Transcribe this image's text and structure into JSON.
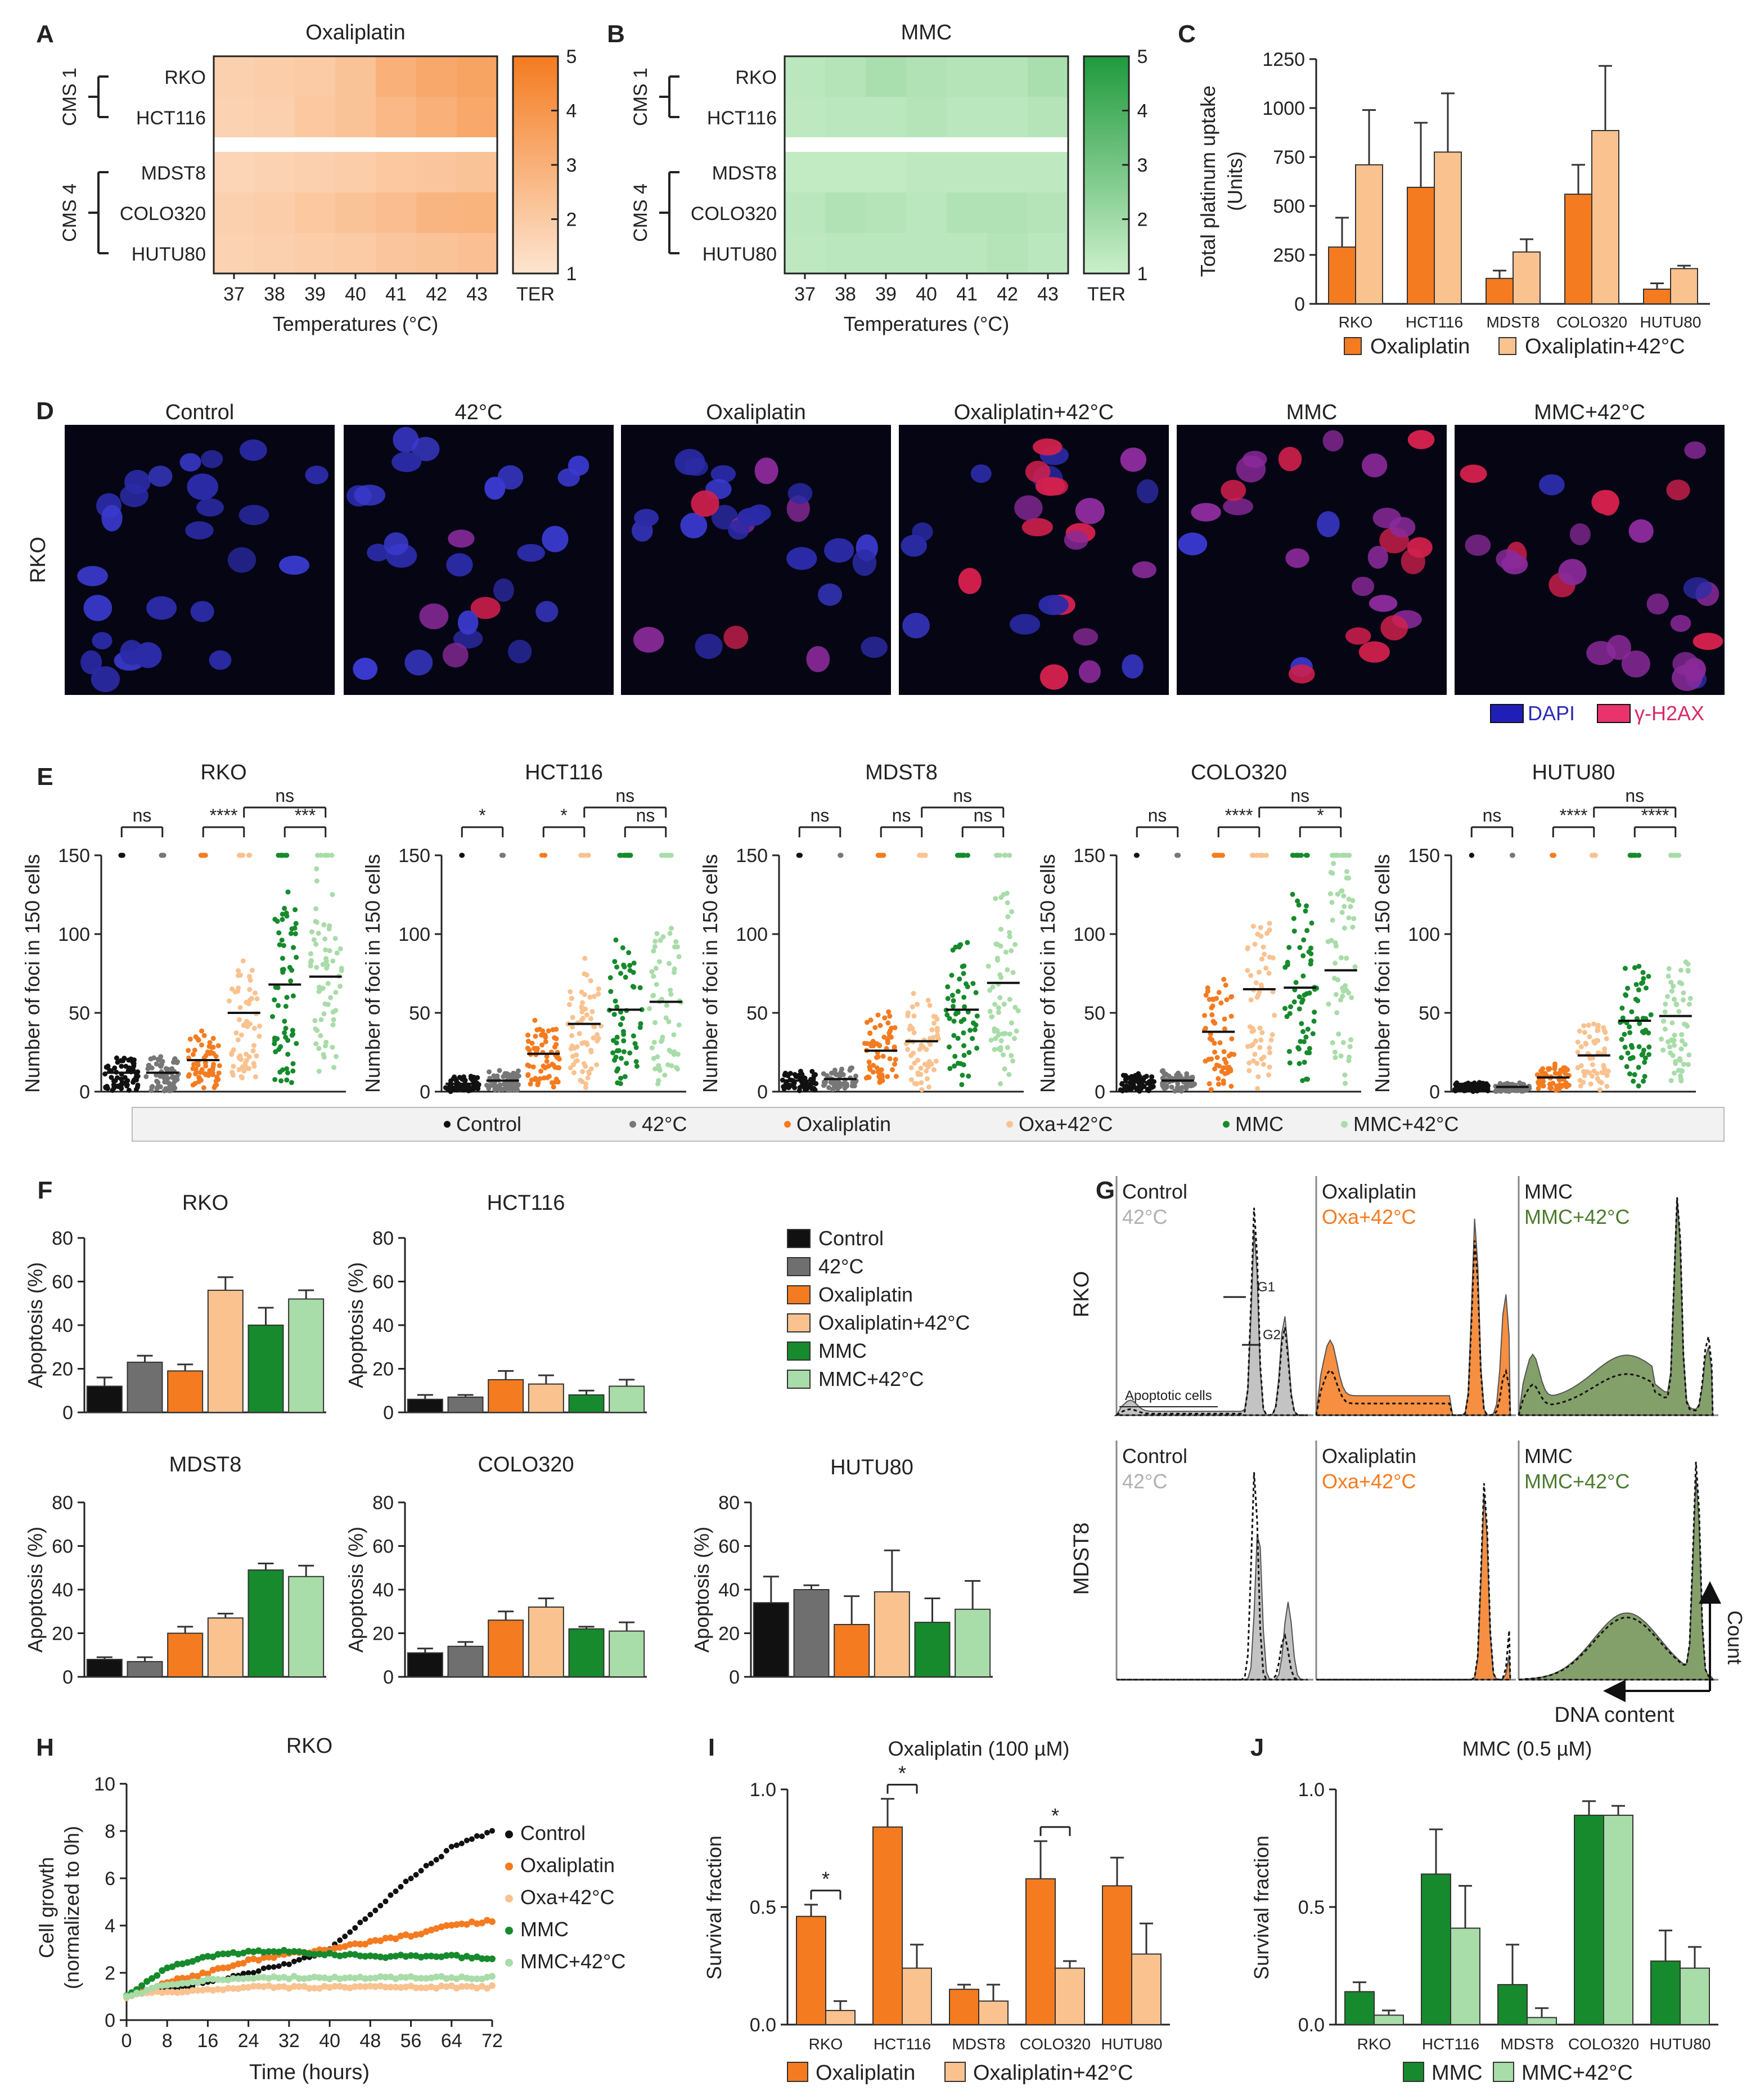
{
  "figure": {
    "panel_letters": [
      "A",
      "B",
      "C",
      "D",
      "E",
      "F",
      "G",
      "H",
      "I",
      "J"
    ],
    "colors": {
      "control": "#111111",
      "heat": "#6f6f6f",
      "oxaliplatin": "#f47b20",
      "oxa_heat": "#f9c28f",
      "mmc": "#168a2c",
      "mmc_heat": "#a8dca8",
      "dapi": "#1f1fb8",
      "h2ax": "#e8336d"
    }
  },
  "chart_data": [
    {
      "id": "A",
      "type": "heatmap",
      "title": "Oxaliplatin",
      "xlabel": "Temperatures (°C)",
      "x": [
        "37",
        "38",
        "39",
        "40",
        "41",
        "42",
        "43"
      ],
      "rows": [
        "RKO",
        "HCT116",
        "MDST8",
        "COLO320",
        "HUTU80"
      ],
      "groups": [
        {
          "label": "CMS 1",
          "rows": [
            "RKO",
            "HCT116"
          ]
        },
        {
          "label": "CMS 4",
          "rows": [
            "MDST8",
            "COLO320",
            "HUTU80"
          ]
        }
      ],
      "values": [
        [
          1.8,
          1.9,
          2.0,
          2.3,
          3.0,
          3.3,
          3.5
        ],
        [
          1.7,
          1.8,
          2.1,
          2.3,
          2.7,
          3.0,
          3.3
        ],
        [
          1.6,
          1.7,
          1.8,
          1.9,
          2.1,
          2.2,
          2.3
        ],
        [
          1.8,
          1.9,
          2.1,
          2.3,
          2.5,
          2.8,
          2.9
        ],
        [
          1.7,
          1.8,
          1.9,
          2.0,
          2.2,
          2.3,
          2.4
        ]
      ],
      "colorbar": {
        "label": "TER",
        "min": 1,
        "max": 5,
        "ticks": [
          "1",
          "2",
          "3",
          "4",
          "5"
        ]
      }
    },
    {
      "id": "B",
      "type": "heatmap",
      "title": "MMC",
      "xlabel": "Temperatures (°C)",
      "x": [
        "37",
        "38",
        "39",
        "40",
        "41",
        "42",
        "43"
      ],
      "rows": [
        "RKO",
        "HCT116",
        "MDST8",
        "COLO320",
        "HUTU80"
      ],
      "groups": [
        {
          "label": "CMS 1",
          "rows": [
            "RKO",
            "HCT116"
          ]
        },
        {
          "label": "CMS 4",
          "rows": [
            "MDST8",
            "COLO320",
            "HUTU80"
          ]
        }
      ],
      "values": [
        [
          1.4,
          1.5,
          1.8,
          1.6,
          1.5,
          1.5,
          1.8
        ],
        [
          1.3,
          1.4,
          1.4,
          1.5,
          1.4,
          1.4,
          1.5
        ],
        [
          1.2,
          1.2,
          1.2,
          1.3,
          1.3,
          1.3,
          1.3
        ],
        [
          1.4,
          1.6,
          1.5,
          1.4,
          1.6,
          1.6,
          1.5
        ],
        [
          1.3,
          1.4,
          1.4,
          1.4,
          1.4,
          1.5,
          1.4
        ]
      ],
      "colorbar": {
        "label": "TER",
        "min": 1,
        "max": 5,
        "ticks": [
          "1",
          "2",
          "3",
          "4",
          "5"
        ]
      }
    },
    {
      "id": "C",
      "type": "bar",
      "title": "",
      "ylabel": "Total platinum uptake (Units)",
      "ylabel_lines": [
        "Total platinum uptake",
        "(Units)"
      ],
      "ylim": [
        0,
        1250
      ],
      "yticks": [
        "0",
        "250",
        "500",
        "750",
        "1000",
        "1250"
      ],
      "categories": [
        "RKO",
        "HCT116",
        "MDST8",
        "COLO320",
        "HUTU80"
      ],
      "series": [
        {
          "name": "Oxaliplatin",
          "values": [
            290,
            595,
            130,
            560,
            75
          ],
          "errors": [
            150,
            330,
            40,
            150,
            30
          ]
        },
        {
          "name": "Oxaliplatin+42°C",
          "values": [
            710,
            775,
            265,
            885,
            180
          ],
          "errors": [
            280,
            300,
            65,
            330,
            15
          ]
        }
      ]
    },
    {
      "id": "E",
      "type": "scatter",
      "subtype": "dot-strip",
      "ylabel": "Number of foci in 150 cells",
      "ylim": [
        0,
        150
      ],
      "yticks": [
        "0",
        "50",
        "100",
        "150"
      ],
      "groups": [
        "Control",
        "42°C",
        "Oxaliplatin",
        "Oxa+42°C",
        "MMC",
        "MMC+42°C"
      ],
      "panels": [
        {
          "title": "RKO",
          "medians": [
            12,
            12,
            20,
            50,
            68,
            73
          ],
          "sig": [
            "ns",
            "****",
            "ns",
            "***"
          ]
        },
        {
          "title": "HCT116",
          "medians": [
            5,
            7,
            24,
            43,
            52,
            57
          ],
          "sig": [
            "*",
            "*",
            "ns",
            "ns"
          ]
        },
        {
          "title": "MDST8",
          "medians": [
            7,
            8,
            26,
            32,
            52,
            69
          ],
          "sig": [
            "ns",
            "ns",
            "ns",
            "ns"
          ]
        },
        {
          "title": "COLO320",
          "medians": [
            6,
            7,
            38,
            65,
            66,
            77
          ],
          "sig": [
            "ns",
            "****",
            "ns",
            "*"
          ]
        },
        {
          "title": "HUTU80",
          "medians": [
            3,
            3,
            9,
            23,
            45,
            48
          ],
          "sig": [
            "ns",
            "****",
            "ns",
            "****"
          ]
        }
      ]
    },
    {
      "id": "F",
      "type": "bar",
      "ylabel": "Apoptosis (%)",
      "ylim": [
        0,
        80
      ],
      "yticks": [
        "0",
        "20",
        "40",
        "60",
        "80"
      ],
      "categories": [
        "Control",
        "42°C",
        "Oxaliplatin",
        "Oxaliplatin+42°C",
        "MMC",
        "MMC+42°C"
      ],
      "panels": [
        {
          "title": "RKO",
          "values": [
            12,
            23,
            19,
            56,
            40,
            52
          ],
          "errors": [
            4,
            3,
            3,
            6,
            8,
            4
          ]
        },
        {
          "title": "HCT116",
          "values": [
            6,
            7,
            15,
            13,
            8,
            12
          ],
          "errors": [
            2,
            1,
            4,
            4,
            2,
            3
          ]
        },
        {
          "title": "MDST8",
          "values": [
            8,
            7,
            20,
            27,
            49,
            46
          ],
          "errors": [
            1,
            2,
            3,
            2,
            3,
            5
          ]
        },
        {
          "title": "COLO320",
          "values": [
            11,
            14,
            26,
            32,
            22,
            21
          ],
          "errors": [
            2,
            2,
            4,
            4,
            1,
            4
          ]
        },
        {
          "title": "HUTU80",
          "values": [
            34,
            40,
            24,
            39,
            25,
            31
          ],
          "errors": [
            12,
            2,
            13,
            19,
            11,
            13
          ]
        }
      ]
    },
    {
      "id": "G",
      "type": "area",
      "subtype": "histogram-overlay",
      "xlabel": "DNA content",
      "ylabel": "Count",
      "rows": [
        "RKO",
        "MDST8"
      ],
      "columns": [
        {
          "a": "Control",
          "b": "42°C"
        },
        {
          "a": "Oxaliplatin",
          "b": "Oxa+42°C"
        },
        {
          "a": "MMC",
          "b": "MMC+42°C"
        }
      ],
      "annotations": [
        "G1",
        "G2",
        "Apoptotic cells"
      ]
    },
    {
      "id": "H",
      "type": "line",
      "title": "RKO",
      "xlabel": "Time (hours)",
      "ylabel": "Cell growth (normalized to 0h)",
      "ylabel_lines": [
        "Cell growth",
        "(normalized to 0h)"
      ],
      "xlim": [
        0,
        72
      ],
      "ylim": [
        0,
        10
      ],
      "xticks": [
        "0",
        "8",
        "16",
        "24",
        "32",
        "40",
        "48",
        "56",
        "64",
        "72"
      ],
      "yticks": [
        "0",
        "2",
        "4",
        "6",
        "8",
        "10"
      ],
      "x": [
        0,
        8,
        16,
        24,
        32,
        40,
        48,
        56,
        64,
        72
      ],
      "series": [
        {
          "name": "Control",
          "values": [
            1.0,
            1.3,
            1.6,
            2.0,
            2.4,
            3.0,
            4.5,
            6.0,
            7.3,
            8.0
          ]
        },
        {
          "name": "Oxaliplatin",
          "values": [
            1.0,
            1.6,
            2.0,
            2.5,
            2.8,
            3.0,
            3.3,
            3.6,
            4.0,
            4.2
          ]
        },
        {
          "name": "Oxa+42°C",
          "values": [
            1.0,
            1.2,
            1.3,
            1.4,
            1.4,
            1.4,
            1.4,
            1.4,
            1.4,
            1.4
          ]
        },
        {
          "name": "MMC",
          "values": [
            1.0,
            2.2,
            2.7,
            2.9,
            2.9,
            2.8,
            2.7,
            2.7,
            2.7,
            2.6
          ]
        },
        {
          "name": "MMC+42°C",
          "values": [
            1.0,
            1.5,
            1.7,
            1.8,
            1.8,
            1.8,
            1.8,
            1.8,
            1.8,
            1.8
          ]
        }
      ]
    },
    {
      "id": "I",
      "type": "bar",
      "title": "Oxaliplatin (100 µM)",
      "ylabel": "Survival fraction",
      "ylim": [
        0,
        1
      ],
      "yticks": [
        "0.0",
        "0.5",
        "1.0"
      ],
      "categories": [
        "RKO",
        "HCT116",
        "MDST8",
        "COLO320",
        "HUTU80"
      ],
      "series": [
        {
          "name": "Oxaliplatin",
          "values": [
            0.46,
            0.84,
            0.15,
            0.62,
            0.59
          ],
          "errors": [
            0.05,
            0.12,
            0.02,
            0.16,
            0.12
          ]
        },
        {
          "name": "Oxaliplatin+42°C",
          "values": [
            0.06,
            0.24,
            0.1,
            0.24,
            0.3
          ],
          "errors": [
            0.04,
            0.1,
            0.07,
            0.03,
            0.13
          ]
        }
      ],
      "significance": [
        {
          "category": "RKO",
          "label": "*"
        },
        {
          "category": "HCT116",
          "label": "*"
        },
        {
          "category": "COLO320",
          "label": "*"
        }
      ]
    },
    {
      "id": "J",
      "type": "bar",
      "title": "MMC (0.5 µM)",
      "ylabel": "Survival fraction",
      "ylim": [
        0,
        1
      ],
      "yticks": [
        "0.0",
        "0.5",
        "1.0"
      ],
      "categories": [
        "RKO",
        "HCT116",
        "MDST8",
        "COLO320",
        "HUTU80"
      ],
      "series": [
        {
          "name": "MMC",
          "values": [
            0.14,
            0.64,
            0.17,
            0.89,
            0.27
          ],
          "errors": [
            0.04,
            0.19,
            0.17,
            0.06,
            0.13
          ]
        },
        {
          "name": "MMC+42°C",
          "values": [
            0.04,
            0.41,
            0.03,
            0.89,
            0.24
          ],
          "errors": [
            0.02,
            0.18,
            0.04,
            0.04,
            0.09
          ]
        }
      ]
    }
  ],
  "panel_D": {
    "titles": [
      "Control",
      "42°C",
      "Oxaliplatin",
      "Oxaliplatin+42°C",
      "MMC",
      "MMC+42°C"
    ],
    "row_label": "RKO",
    "legend": [
      "DAPI",
      "γ-H2AX"
    ]
  },
  "panel_E_legend": [
    "Control",
    "42°C",
    "Oxaliplatin",
    "Oxa+42°C",
    "MMC",
    "MMC+42°C"
  ],
  "panel_F_legend": [
    "Control",
    "42°C",
    "Oxaliplatin",
    "Oxaliplatin+42°C",
    "MMC",
    "MMC+42°C"
  ],
  "panel_H_legend": [
    "Control",
    "Oxaliplatin",
    "Oxa+42°C",
    "MMC",
    "MMC+42°C"
  ]
}
